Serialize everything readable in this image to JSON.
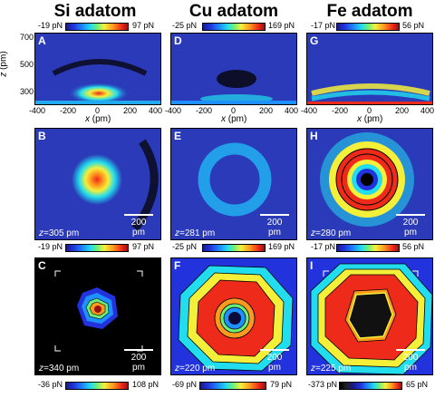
{
  "columns": [
    {
      "title": "Si adatom",
      "top_scale": {
        "min": "-19 pN",
        "max": "97 pN"
      },
      "panels": {
        "side": {
          "label": "A"
        },
        "mid": {
          "label": "B",
          "z_var": "z",
          "z_rest": "=305 pm",
          "scale": "200 pm"
        },
        "bot": {
          "label": "C",
          "z_var": "z",
          "z_rest": "=340 pm",
          "scale": "200 pm"
        }
      },
      "mid_scale": {
        "min": "-19 pN",
        "max": "97 pN"
      },
      "bot_scale": {
        "min": "-36 pN",
        "max": "108 pN"
      }
    },
    {
      "title": "Cu adatom",
      "top_scale": {
        "min": "-25 pN",
        "max": "169 pN"
      },
      "panels": {
        "side": {
          "label": "D"
        },
        "mid": {
          "label": "E",
          "z_var": "z",
          "z_rest": "=281 pm",
          "scale": "200 pm"
        },
        "bot": {
          "label": "F",
          "z_var": "z",
          "z_rest": "=220 pm",
          "scale": "200 pm"
        }
      },
      "mid_scale": {
        "min": "-25 pN",
        "max": "169 pN"
      },
      "bot_scale": {
        "min": "-69 pN",
        "max": "79 pN"
      }
    },
    {
      "title": "Fe adatom",
      "top_scale": {
        "min": "-17 pN",
        "max": "56 pN"
      },
      "panels": {
        "side": {
          "label": "G"
        },
        "mid": {
          "label": "H",
          "z_var": "z",
          "z_rest": "=280 pm",
          "scale": "200 pm"
        },
        "bot": {
          "label": "I",
          "z_var": "z",
          "z_rest": "=225 pm",
          "scale": "200 pm"
        }
      },
      "mid_scale": {
        "min": "-17 pN",
        "max": "56 pN"
      },
      "bot_scale": {
        "min": "-373 pN",
        "max": "65 pN"
      }
    }
  ],
  "axes": {
    "z_axis_var": "z",
    "z_axis_unit": " (pm)",
    "z_ticks": [
      "700",
      "500",
      "300"
    ],
    "x_axis_var": "x",
    "x_axis_unit": " (pm)",
    "x_ticks": [
      "-400",
      "-200",
      "0",
      "200",
      "400"
    ]
  },
  "colors": {
    "background": "#2a3ab8",
    "dark": "#000000"
  }
}
